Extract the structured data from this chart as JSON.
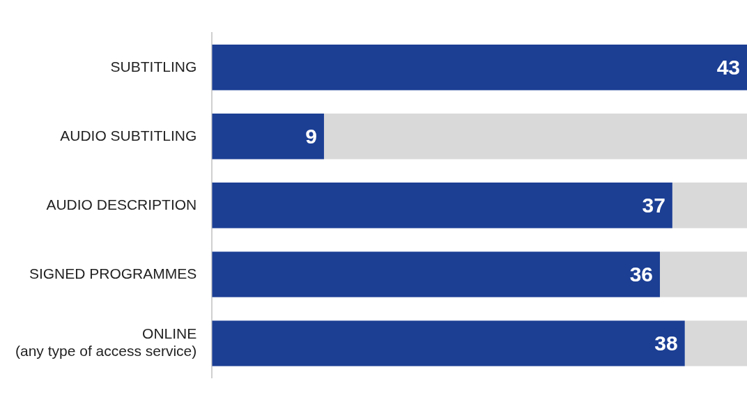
{
  "chart_data": {
    "type": "bar",
    "orientation": "horizontal",
    "stacked": true,
    "categories": [
      "SUBTITLING",
      "AUDIO SUBTITLING",
      "AUDIO DESCRIPTION",
      "SIGNED PROGRAMMES",
      "ONLINE\n(any type of access service)"
    ],
    "series": [
      {
        "color": "#1c3f94",
        "values": [
          43,
          9,
          37,
          36,
          38
        ],
        "value_labels": [
          "43",
          "9",
          "37",
          "36",
          "38"
        ]
      },
      {
        "color": "#d9d9d9",
        "values": [
          0,
          34,
          6,
          7,
          5
        ]
      }
    ],
    "grid": false,
    "legend": false
  }
}
